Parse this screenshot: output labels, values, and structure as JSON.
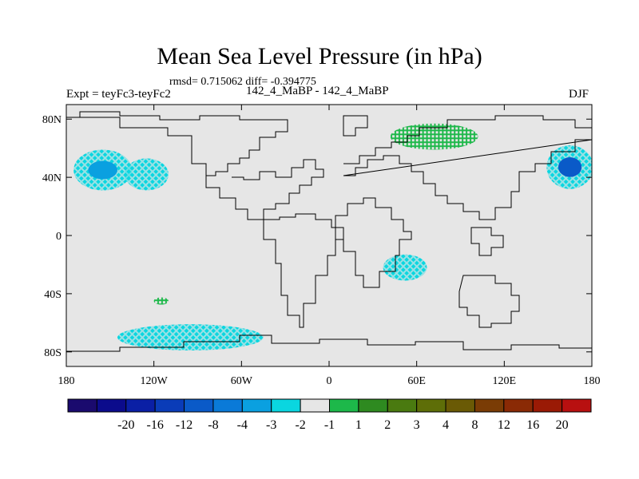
{
  "header": {
    "title": "Mean Sea Level Pressure (in hPa)",
    "stats": "rmsd= 0.715062 diff= -0.394775",
    "expt": "Expt = teyFc3-teyFc2",
    "runs": "142_4_MaBP - 142_4_MaBP",
    "season": "DJF"
  },
  "chart_data": {
    "type": "heatmap",
    "title": "Mean Sea Level Pressure (in hPa)",
    "projection": "cylindrical equidistant",
    "x_range": [
      -180,
      180
    ],
    "y_range": [
      -90,
      90
    ],
    "x_ticks": [
      {
        "value": -180,
        "label": "180"
      },
      {
        "value": -120,
        "label": "120W"
      },
      {
        "value": -60,
        "label": "60W"
      },
      {
        "value": 0,
        "label": "0"
      },
      {
        "value": 60,
        "label": "60E"
      },
      {
        "value": 120,
        "label": "120E"
      },
      {
        "value": 180,
        "label": "180"
      }
    ],
    "y_ticks": [
      {
        "value": 80,
        "label": "80N"
      },
      {
        "value": 40,
        "label": "40N"
      },
      {
        "value": 0,
        "label": "0"
      },
      {
        "value": -40,
        "label": "40S"
      },
      {
        "value": -80,
        "label": "80S"
      }
    ],
    "colorbar": {
      "colors": [
        "#1a0a6e",
        "#0b0b8c",
        "#0a1fa5",
        "#0a3cb8",
        "#0a5ac8",
        "#0a7ad8",
        "#0aa0e0",
        "#0ad6e0",
        "#e6e6e6",
        "#1db84a",
        "#2e8a20",
        "#4a7a10",
        "#5e6e08",
        "#6a5a05",
        "#7a3c05",
        "#8a2a05",
        "#9a1a05",
        "#b81010"
      ],
      "labels": [
        "-20",
        "-16",
        "-12",
        "-8",
        "-4",
        "-3",
        "-2",
        "-1",
        "1",
        "2",
        "3",
        "4",
        "8",
        "12",
        "16",
        "20"
      ]
    },
    "anomalies": [
      {
        "name": "north-pacific-west-low",
        "lon": -155,
        "lat": 45,
        "lon_width": 40,
        "lat_width": 28,
        "level": "-2",
        "core_level": "-3",
        "color": "#0ad6e0"
      },
      {
        "name": "north-pacific-central-low",
        "lon": -125,
        "lat": 42,
        "lon_width": 30,
        "lat_width": 22,
        "level": "-2",
        "color": "#0ad6e0"
      },
      {
        "name": "north-pacific-east-low",
        "lon": 165,
        "lat": 47,
        "lon_width": 32,
        "lat_width": 30,
        "level": "-4",
        "core_level": "-8",
        "color": "#0aa0e0"
      },
      {
        "name": "southern-ocean-low",
        "lon": -95,
        "lat": -70,
        "lon_width": 100,
        "lat_width": 18,
        "level": "-2",
        "color": "#0ad6e0"
      },
      {
        "name": "indian-ocean-low",
        "lon": 52,
        "lat": -22,
        "lon_width": 30,
        "lat_width": 18,
        "level": "-1",
        "color": "#0ad6e0"
      },
      {
        "name": "siberia-high",
        "lon": 72,
        "lat": 68,
        "lon_width": 60,
        "lat_width": 18,
        "level": "2",
        "color": "#1db84a"
      },
      {
        "name": "south-pacific-high",
        "lon": -115,
        "lat": -45,
        "lon_width": 10,
        "lat_width": 5,
        "level": "2",
        "color": "#1db84a"
      }
    ]
  }
}
